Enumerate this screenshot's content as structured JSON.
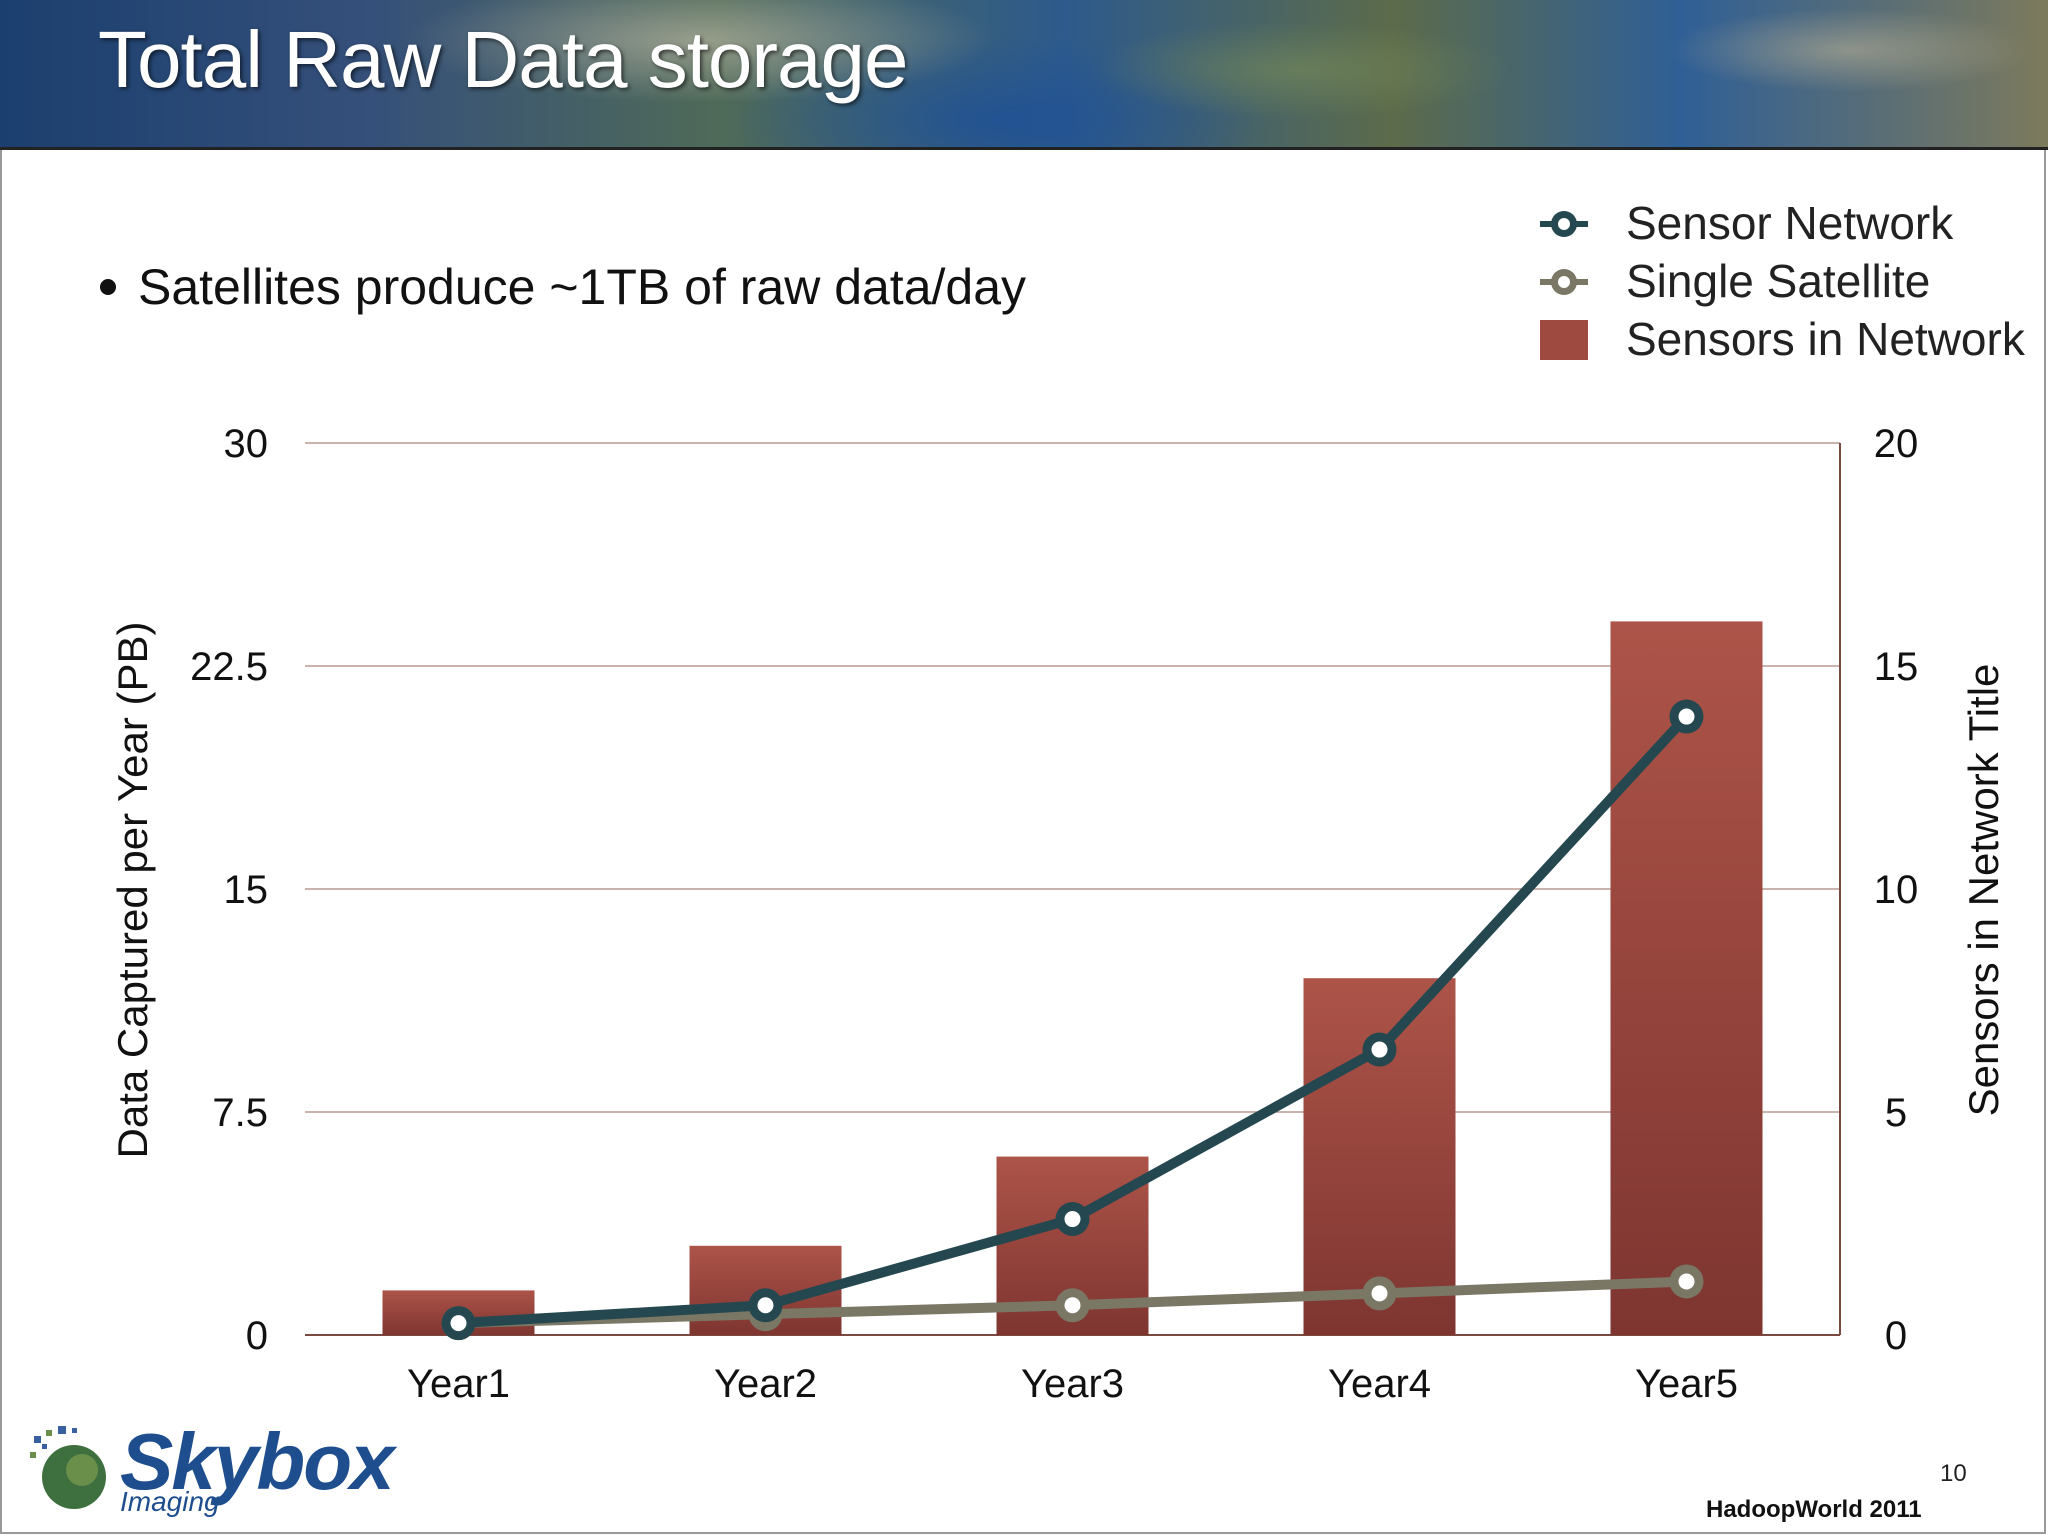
{
  "slide": {
    "title": "Total Raw Data storage",
    "bullet": "Satellites produce ~1TB of raw data/day",
    "logo_word": "Skybox",
    "logo_sub": "Imaging",
    "page_number": "10",
    "event": "HadoopWorld 2011"
  },
  "chart_data": {
    "type": "bar",
    "categories": [
      "Year1",
      "Year2",
      "Year3",
      "Year4",
      "Year5"
    ],
    "series": [
      {
        "name": "Sensors in Network",
        "type": "bar",
        "axis": "right",
        "values": [
          1,
          2,
          4,
          8,
          16
        ],
        "color": "#9e4a40"
      },
      {
        "name": "Sensor Network",
        "type": "line",
        "axis": "left",
        "values": [
          0.4,
          1.0,
          3.9,
          9.6,
          20.8
        ],
        "color": "#254850"
      },
      {
        "name": "Single Satellite",
        "type": "line",
        "axis": "left",
        "values": [
          0.4,
          0.7,
          1.0,
          1.4,
          1.8
        ],
        "color": "#7a7765"
      }
    ],
    "ylabel": "Data Captured per Year (PB)",
    "y2label": "Sensors in Network Title",
    "ylim": [
      0,
      30
    ],
    "y2lim": [
      0,
      20
    ],
    "yticks": [
      "0",
      "7.5",
      "15",
      "22.5",
      "30"
    ],
    "y2ticks": [
      "0",
      "5",
      "10",
      "15",
      "20"
    ],
    "grid": true,
    "legend_position": "top-right"
  }
}
